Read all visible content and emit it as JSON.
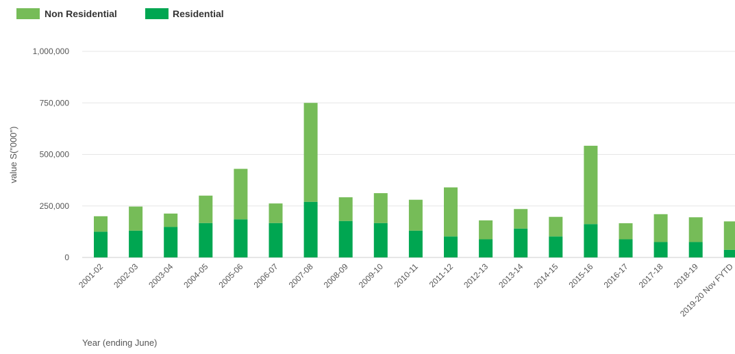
{
  "chart_data": {
    "type": "bar",
    "stacked": true,
    "xlabel": "Year (ending June)",
    "ylabel": "value S(\"000\")",
    "ylim": [
      0,
      1000000
    ],
    "yticks": [
      0,
      250000,
      500000,
      750000,
      1000000
    ],
    "ytick_labels": [
      "0",
      "250,000",
      "500,000",
      "750,000",
      "1,000,000"
    ],
    "grid": true,
    "legend_position": "top-left",
    "categories": [
      "2001-02",
      "2002-03",
      "2003-04",
      "2004-05",
      "2005-06",
      "2006-07",
      "2007-08",
      "2008-09",
      "2009-10",
      "2010-11",
      "2011-12",
      "2012-13",
      "2013-14",
      "2014-15",
      "2015-16",
      "2016-17",
      "2017-18",
      "2018-19",
      "2019-20 Nov FYTD"
    ],
    "series": [
      {
        "name": "Residential",
        "color": "#00a651",
        "values": [
          125000,
          130000,
          148000,
          167000,
          185000,
          167000,
          270000,
          177000,
          167000,
          130000,
          102000,
          88000,
          140000,
          102000,
          162000,
          88000,
          75000,
          75000,
          37000
        ]
      },
      {
        "name": "Non Residential",
        "color": "#76bc58",
        "values": [
          75000,
          117000,
          65000,
          133000,
          245000,
          95000,
          480000,
          115000,
          145000,
          150000,
          238000,
          92000,
          95000,
          95000,
          380000,
          78000,
          135000,
          120000,
          138000
        ]
      }
    ],
    "legend": [
      {
        "name": "Non Residential",
        "color": "#76bc58"
      },
      {
        "name": "Residential",
        "color": "#00a651"
      }
    ]
  }
}
